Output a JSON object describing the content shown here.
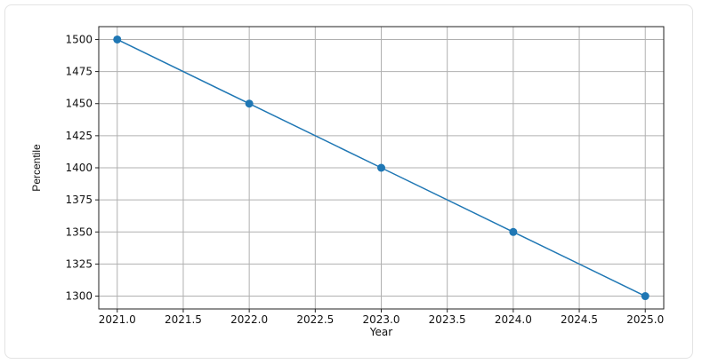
{
  "chart_data": {
    "type": "line",
    "title": "",
    "xlabel": "Year",
    "ylabel": "Percentile",
    "x": [
      2021,
      2022,
      2023,
      2024,
      2025
    ],
    "series": [
      {
        "values": [
          1500,
          1450,
          1400,
          1350,
          1300
        ]
      }
    ],
    "xlim": [
      2020.86,
      2025.14
    ],
    "ylim": [
      1290,
      1510
    ],
    "xticks": [
      2021.0,
      2021.5,
      2022.0,
      2022.5,
      2023.0,
      2023.5,
      2024.0,
      2024.5,
      2025.0
    ],
    "xtick_labels": [
      "2021.0",
      "2021.5",
      "2022.0",
      "2022.5",
      "2023.0",
      "2023.5",
      "2024.0",
      "2024.5",
      "2025.0"
    ],
    "yticks": [
      1300,
      1325,
      1350,
      1375,
      1400,
      1425,
      1450,
      1475,
      1500
    ],
    "ytick_labels": [
      "1300",
      "1325",
      "1350",
      "1375",
      "1400",
      "1425",
      "1450",
      "1475",
      "1500"
    ],
    "grid": true,
    "line_color": "#1f77b4",
    "grid_color": "#b0b0b0"
  }
}
